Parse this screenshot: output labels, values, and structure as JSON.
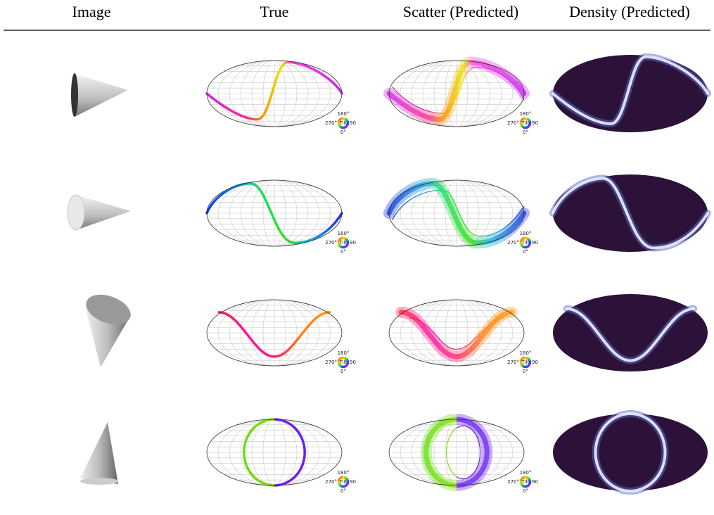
{
  "header": {
    "columns": [
      "Image",
      "True",
      "Scatter (Predicted)",
      "Density (Predicted)"
    ]
  },
  "tilt_legend": {
    "top": "180°",
    "left": "270°",
    "center": "Tilt",
    "right": "90",
    "bottom": "0°"
  }
}
